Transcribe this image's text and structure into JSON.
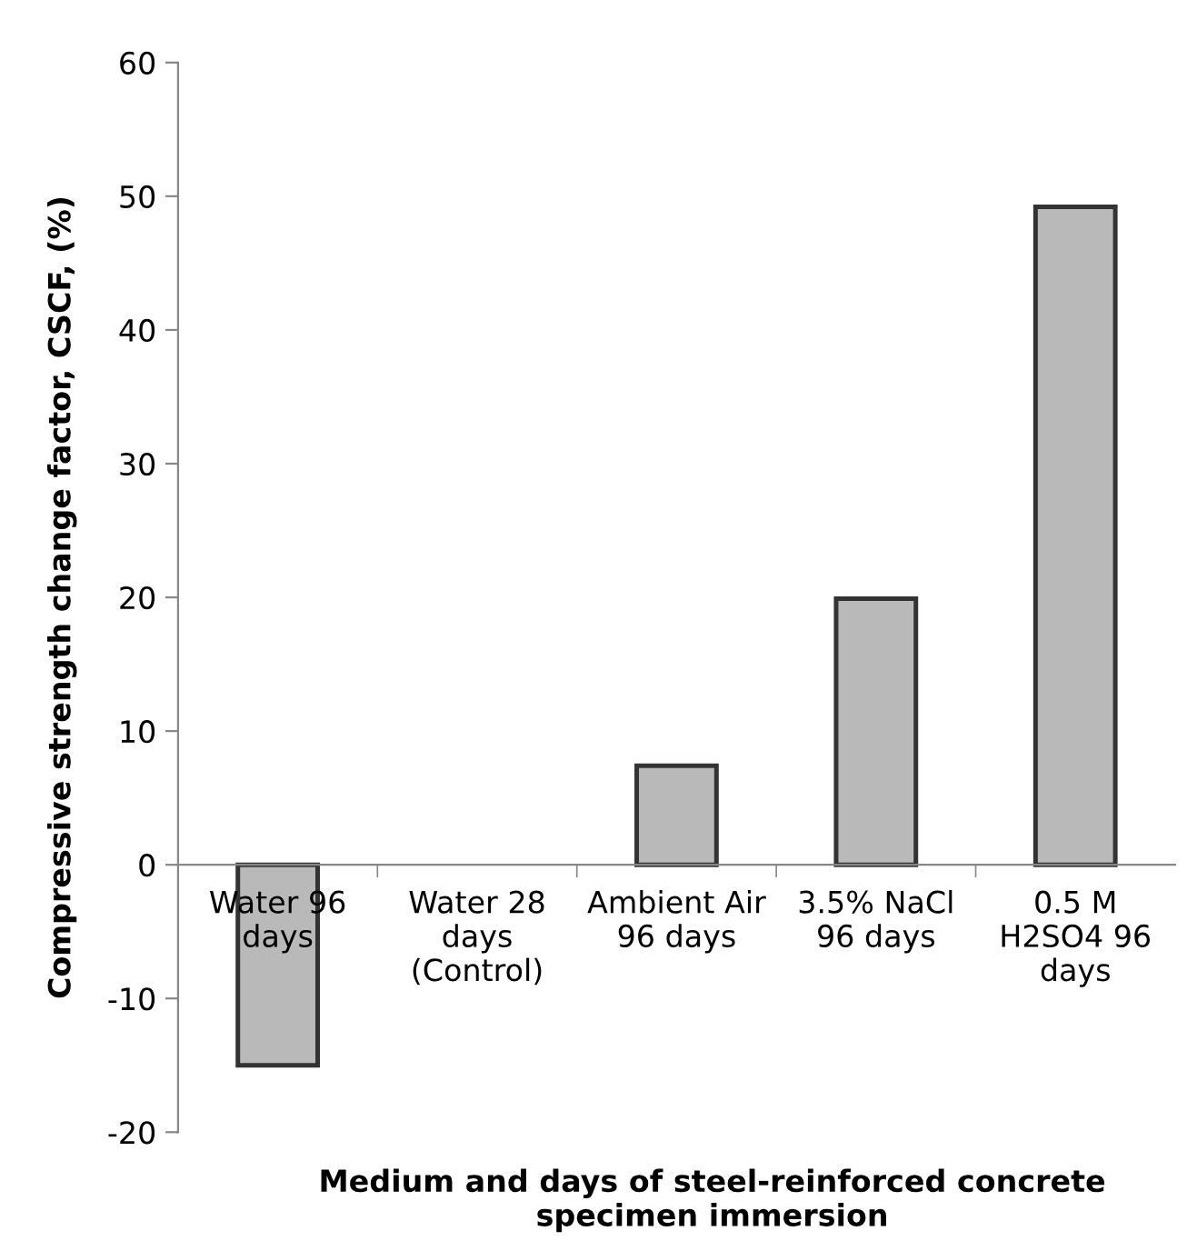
{
  "chart_data": {
    "type": "bar",
    "categories": [
      "Water 96\ndays",
      "Water 28\ndays\n(Control)",
      "Ambient Air\n96 days",
      "3.5% NaCl\n96 days",
      "0.5 M\nH2SO4 96\ndays"
    ],
    "values": [
      -15,
      null,
      7.4,
      19.9,
      49.2
    ],
    "color": "#b9b9b9",
    "xlabel": "Medium and days of steel-reinforced concrete\nspecimen immersion",
    "ylabel": "Compressive strength change factor, CSCF, (%)",
    "ylim": [
      -20,
      60
    ],
    "yticks": [
      -20,
      -10,
      0,
      10,
      20,
      30,
      40,
      50,
      60
    ],
    "grid": false,
    "legend": false
  }
}
